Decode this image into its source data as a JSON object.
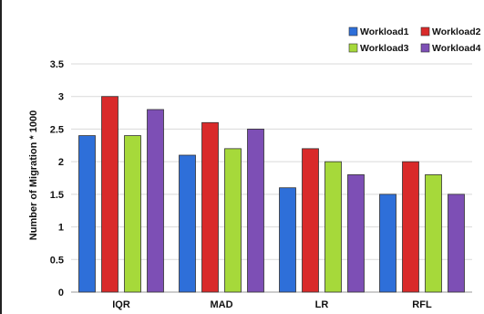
{
  "chart_data": {
    "type": "bar",
    "title": "",
    "xlabel": "",
    "ylabel": "Number of Migration * 1000",
    "categories": [
      "IQR",
      "MAD",
      "LR",
      "RFL"
    ],
    "ylim": [
      0,
      3.5
    ],
    "yticks": [
      0,
      0.5,
      1,
      1.5,
      2,
      2.5,
      3,
      3.5
    ],
    "ytick_labels": [
      "0",
      "0.5",
      "1",
      "1.5",
      "2",
      "2.5",
      "3",
      "3.5"
    ],
    "grid": true,
    "legend_position": "top-right",
    "series": [
      {
        "name": "Workload1",
        "color": "#2e6fd9",
        "values": [
          2.4,
          2.1,
          1.6,
          1.5
        ]
      },
      {
        "name": "Workload2",
        "color": "#d92a2a",
        "values": [
          3.0,
          2.6,
          2.2,
          2.0
        ]
      },
      {
        "name": "Workload3",
        "color": "#a6d93a",
        "values": [
          2.4,
          2.2,
          2.0,
          1.8
        ]
      },
      {
        "name": "Workload4",
        "color": "#7d4fb5",
        "values": [
          2.8,
          2.5,
          1.8,
          1.5
        ]
      }
    ]
  }
}
